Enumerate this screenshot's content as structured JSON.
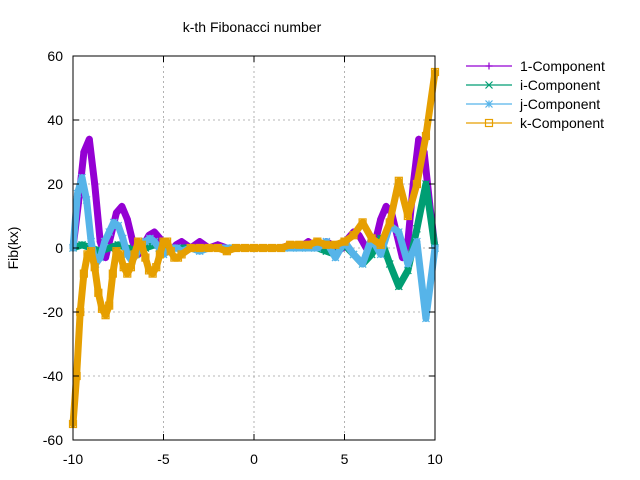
{
  "chart_data": {
    "type": "line",
    "title": "k-th Fibonacci number",
    "xlabel": "",
    "ylabel": "Fib(kx)",
    "xlim": [
      -10,
      10
    ],
    "ylim": [
      -60,
      60
    ],
    "xticks": [
      -10,
      -5,
      0,
      5,
      10
    ],
    "yticks": [
      -60,
      -40,
      -20,
      0,
      20,
      40,
      60
    ],
    "grid": true,
    "legend_position": "top-right, outside plot",
    "series": [
      {
        "name": "1-Component",
        "color": "#9400d3",
        "marker": "plus",
        "x": [
          -10,
          -9.7,
          -9.4,
          -9.1,
          -8.8,
          -8.5,
          -8.2,
          -7.9,
          -7.6,
          -7.3,
          -7.0,
          -6.7,
          -6.4,
          -6.1,
          -5.8,
          -5.5,
          -5.2,
          -4.9,
          -4.6,
          -4.3,
          -4.0,
          -3.5,
          -3.0,
          -2.5,
          -2.0,
          -1.5,
          -1.0,
          -0.5,
          0,
          0.5,
          1.0,
          1.5,
          2.0,
          2.5,
          3.0,
          3.5,
          4.0,
          4.3,
          4.6,
          4.9,
          5.2,
          5.5,
          5.8,
          6.1,
          6.4,
          6.7,
          7.0,
          7.3,
          7.6,
          7.9,
          8.2,
          8.5,
          8.8,
          9.1,
          9.4,
          9.7,
          10
        ],
        "y": [
          0,
          14,
          30,
          34,
          20,
          2,
          -3,
          4,
          11,
          13,
          9,
          2,
          -2,
          1,
          4,
          5,
          3,
          0,
          -1,
          1,
          2,
          0,
          2,
          0,
          1,
          0,
          0,
          0,
          0,
          0,
          0,
          0,
          1,
          0,
          2,
          0,
          2,
          1,
          -1,
          0,
          3,
          5,
          4,
          1,
          -2,
          2,
          9,
          13,
          11,
          4,
          -3,
          2,
          20,
          34,
          30,
          14,
          0
        ]
      },
      {
        "name": "i-Component",
        "color": "#009e73",
        "marker": "cross",
        "x": [
          -10,
          -9.5,
          -9.0,
          -8.5,
          -8.0,
          -7.5,
          -7.0,
          -6.5,
          -6.0,
          -5.5,
          -5.0,
          -4.5,
          -4.0,
          -3.5,
          -3.0,
          -2.5,
          -2.0,
          -1.5,
          -1.0,
          -0.5,
          0,
          0.5,
          1.0,
          1.5,
          2.0,
          2.5,
          3.0,
          3.5,
          4.0,
          4.5,
          5.0,
          5.5,
          6.0,
          6.5,
          7.0,
          7.5,
          8.0,
          8.5,
          9.0,
          9.5,
          10
        ],
        "y": [
          0,
          1,
          0,
          -1,
          0,
          1,
          0,
          -1,
          0,
          1,
          0,
          0,
          0,
          0,
          0,
          0,
          0,
          0,
          0,
          0,
          0,
          0,
          0,
          0,
          0,
          0,
          0,
          0,
          -1,
          -2,
          1,
          -2,
          -5,
          -2,
          3,
          -5,
          -12,
          -7,
          6,
          20,
          0
        ]
      },
      {
        "name": "j-Component",
        "color": "#56b4e9",
        "marker": "star",
        "x": [
          -10,
          -9.75,
          -9.5,
          -9.25,
          -9.0,
          -8.75,
          -8.5,
          -8.25,
          -8.0,
          -7.75,
          -7.5,
          -7.25,
          -7.0,
          -6.75,
          -6.5,
          -6.25,
          -6.0,
          -5.75,
          -5.5,
          -5.25,
          -5.0,
          -4.75,
          -4.5,
          -4.25,
          -4.0,
          -3.5,
          -3.0,
          -2.5,
          -2.0,
          -1.5,
          -1.0,
          -0.5,
          0,
          0.5,
          1.0,
          1.5,
          2.0,
          2.5,
          3.0,
          3.5,
          4.0,
          4.5,
          5.0,
          5.5,
          6.0,
          6.5,
          7.0,
          7.5,
          8.0,
          8.5,
          9.0,
          9.5,
          10
        ],
        "y": [
          0,
          17,
          22,
          15,
          2,
          -5,
          -3,
          2,
          5,
          8,
          7,
          3,
          -2,
          -4,
          -2,
          1,
          2,
          3,
          2,
          0,
          -2,
          -1,
          0,
          0,
          -1,
          0,
          -1,
          0,
          0,
          0,
          0,
          0,
          0,
          0,
          0,
          0,
          0,
          0,
          0,
          0,
          2,
          -3,
          2,
          -2,
          -5,
          3,
          -2,
          7,
          5,
          -5,
          2,
          -22,
          0
        ]
      },
      {
        "name": "k-Component",
        "color": "#e69f00",
        "marker": "square",
        "x": [
          -10,
          -9.8,
          -9.6,
          -9.4,
          -9.2,
          -9.0,
          -8.8,
          -8.6,
          -8.4,
          -8.2,
          -8.0,
          -7.8,
          -7.6,
          -7.4,
          -7.2,
          -7.0,
          -6.8,
          -6.6,
          -6.4,
          -6.2,
          -6.0,
          -5.8,
          -5.6,
          -5.4,
          -5.2,
          -5.0,
          -4.8,
          -4.6,
          -4.4,
          -4.2,
          -4.0,
          -3.5,
          -3.0,
          -2.5,
          -2.0,
          -1.5,
          -1.0,
          -0.5,
          0,
          0.5,
          1.0,
          1.5,
          2.0,
          2.5,
          3.0,
          3.5,
          4.0,
          4.5,
          5.0,
          5.5,
          6.0,
          6.5,
          7.0,
          7.5,
          8.0,
          8.5,
          9.0,
          9.5,
          10
        ],
        "y": [
          -55,
          -40,
          -20,
          -8,
          -2,
          -1,
          -6,
          -14,
          -19,
          -21,
          -18,
          -8,
          -1,
          -2,
          -6,
          -8,
          -6,
          -2,
          2,
          1,
          -3,
          -7,
          -8,
          -6,
          -2,
          2,
          2,
          -1,
          -3,
          -3,
          -2,
          0,
          0,
          0,
          0,
          -1,
          0,
          0,
          0,
          0,
          0,
          0,
          1,
          1,
          1,
          2,
          1,
          1,
          2,
          4,
          8,
          3,
          1,
          8,
          21,
          10,
          20,
          35,
          55
        ]
      }
    ]
  }
}
